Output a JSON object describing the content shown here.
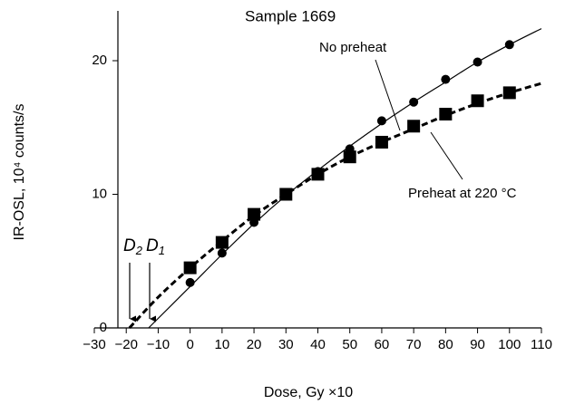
{
  "chart_data": {
    "type": "scatter",
    "title": "Sample 1669",
    "xlabel": "Dose, Gy ×10",
    "ylabel": "IR-OSL, 10⁴ counts/s",
    "xlim": [
      -30,
      110
    ],
    "ylim": [
      0,
      24
    ],
    "xticks": [
      {
        "value": -30,
        "label": "−30"
      },
      {
        "value": -20,
        "label": "−20"
      },
      {
        "value": -10,
        "label": "−10"
      },
      0,
      10,
      20,
      30,
      40,
      50,
      60,
      70,
      80,
      90,
      100,
      110
    ],
    "yticks": [
      0,
      10,
      20
    ],
    "series": [
      {
        "marker": "circle",
        "color": "#000000",
        "x": [
          0,
          10,
          20,
          30,
          40,
          50,
          60,
          70,
          80,
          90,
          100
        ],
        "values": [
          3.4,
          5.6,
          7.9,
          10.0,
          11.7,
          13.4,
          15.5,
          16.9,
          18.6,
          19.9,
          21.2
        ]
      },
      {
        "marker": "square",
        "color": "#000000",
        "x": [
          0,
          10,
          20,
          30,
          40,
          50,
          60,
          70,
          80,
          90,
          100
        ],
        "values": [
          4.5,
          6.4,
          8.5,
          10.0,
          11.5,
          12.8,
          13.9,
          15.1,
          16.0,
          17.0,
          17.6
        ]
      }
    ],
    "fits": [
      {
        "style": "solid",
        "x": [
          -13,
          0,
          10,
          20,
          30,
          40,
          50,
          60,
          70,
          80,
          90,
          100,
          110
        ],
        "values": [
          0,
          3.1,
          5.5,
          7.8,
          9.9,
          11.8,
          13.6,
          15.3,
          16.9,
          18.4,
          19.9,
          21.2,
          22.4
        ]
      },
      {
        "style": "dashed",
        "x": [
          -19,
          -10,
          0,
          10,
          20,
          30,
          40,
          50,
          60,
          70,
          80,
          90,
          100,
          110
        ],
        "values": [
          0,
          2.3,
          4.5,
          6.5,
          8.4,
          10.0,
          11.5,
          12.8,
          13.9,
          14.9,
          15.9,
          16.8,
          17.6,
          18.3
        ]
      }
    ],
    "annotations": {
      "no_preheat": "No preheat",
      "preheat": "Preheat at 220 °C",
      "d2": {
        "text": "D",
        "subscript": "2"
      },
      "d1": {
        "text": "D",
        "subscript": "1"
      }
    }
  }
}
